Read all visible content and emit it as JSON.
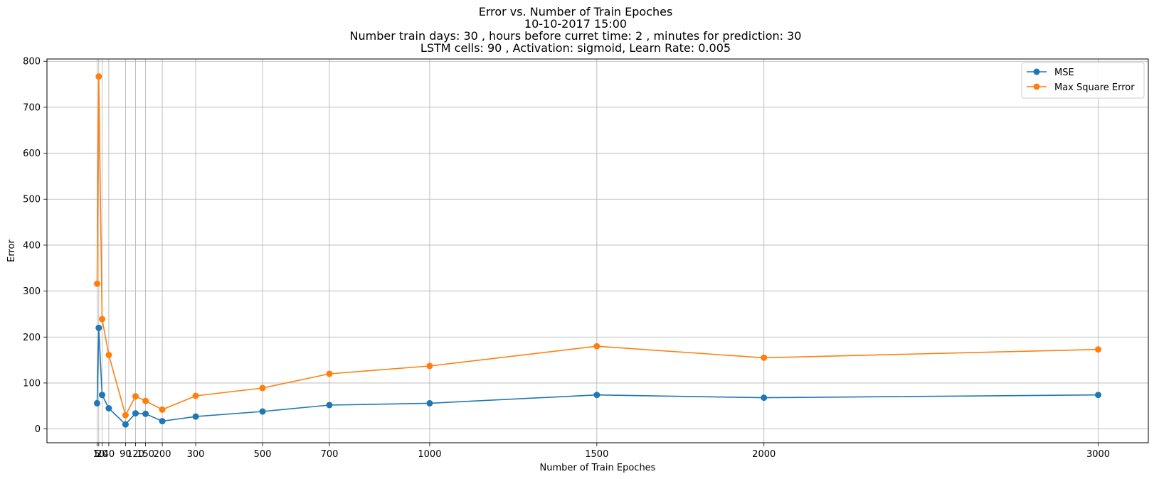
{
  "chart_data": {
    "type": "line",
    "title": [
      "Error vs. Number of Train Epoches",
      "10-10-2017 15:00",
      "Number train days: 30 , hours before curret time: 2 , minutes for prediction: 30",
      "LSTM cells: 90 , Activation: sigmoid, Learn Rate: 0.005"
    ],
    "xlabel": "Number of Train Epoches",
    "ylabel": "Error",
    "x": [
      5,
      10,
      20,
      40,
      90,
      120,
      150,
      200,
      300,
      500,
      700,
      1000,
      1500,
      2000,
      3000
    ],
    "x_tick_labels": [
      "5",
      "10",
      "20",
      "40",
      "90",
      "120",
      "150",
      "200",
      "300",
      "500",
      "700",
      "1000",
      "1500",
      "2000",
      "3000"
    ],
    "xlim": [
      -145,
      3150
    ],
    "yticks": [
      0,
      100,
      200,
      300,
      400,
      500,
      600,
      700,
      800
    ],
    "ylim": [
      -30,
      805
    ],
    "grid": true,
    "legend_position": "top-right",
    "series": [
      {
        "name": "MSE",
        "color": "#1f77b4",
        "values": [
          56,
          220,
          74,
          45,
          10,
          34,
          33,
          17,
          27,
          38,
          52,
          56,
          74,
          68,
          74
        ]
      },
      {
        "name": "Max Square Error",
        "color": "#ff7f0e",
        "values": [
          316,
          767,
          239,
          161,
          30,
          71,
          61,
          42,
          72,
          89,
          120,
          137,
          180,
          155,
          173
        ]
      }
    ]
  }
}
